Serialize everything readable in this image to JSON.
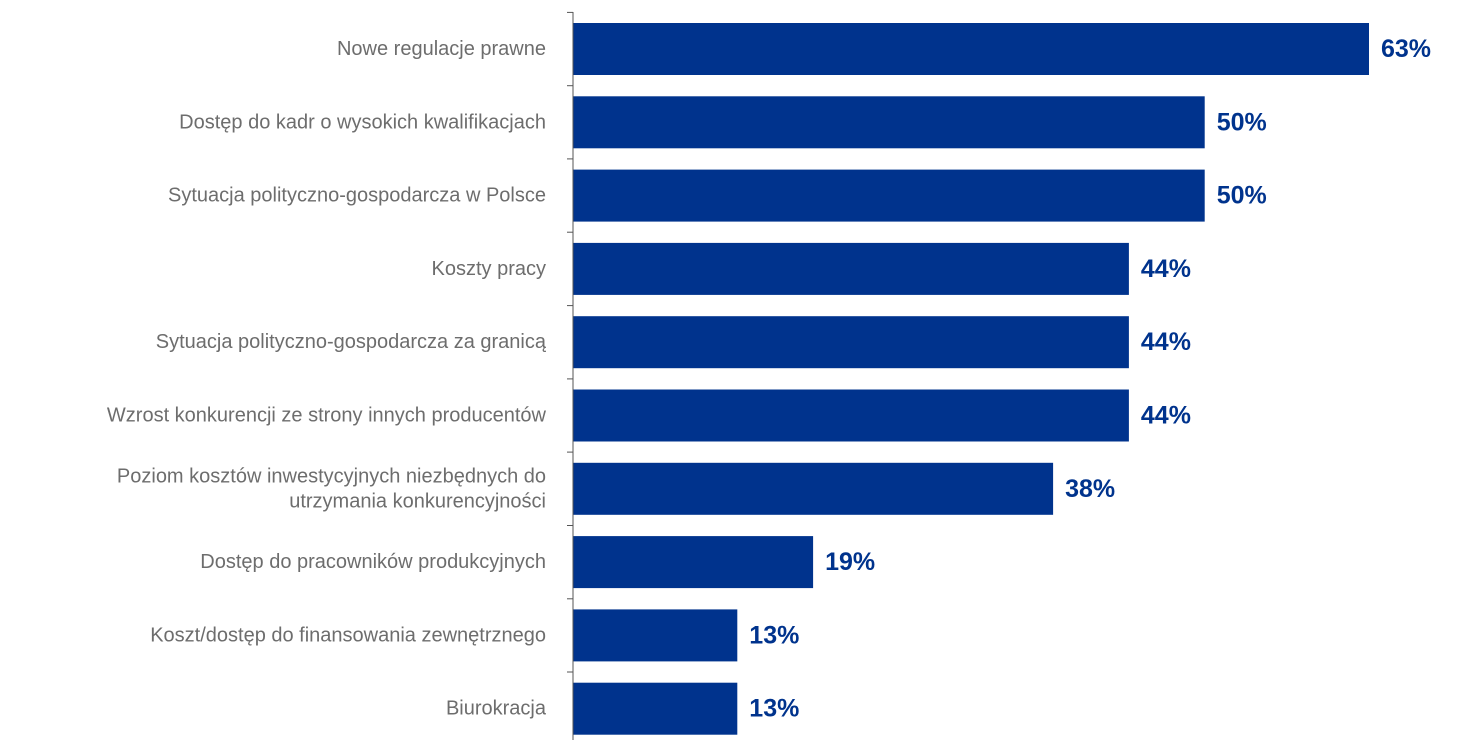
{
  "chart_data": {
    "type": "bar",
    "orientation": "horizontal",
    "categories": [
      [
        "Nowe regulacje prawne"
      ],
      [
        "Dostęp do kadr o wysokich kwalifikacjach"
      ],
      [
        "Sytuacja polityczno-gospodarcza w Polsce"
      ],
      [
        "Koszty pracy"
      ],
      [
        "Sytuacja polityczno-gospodarcza za granicą"
      ],
      [
        "Wzrost konkurencji ze strony innych producentów"
      ],
      [
        "Poziom kosztów inwestycyjnych niezbędnych do",
        "utrzymania konkurencyjności"
      ],
      [
        "Dostęp do pracowników produkcyjnych"
      ],
      [
        "Koszt/dostęp do finansowania zewnętrznego"
      ],
      [
        "Biurokracja"
      ]
    ],
    "values": [
      63,
      50,
      50,
      44,
      44,
      44,
      38,
      19,
      13,
      13
    ],
    "value_labels": [
      "63%",
      "50%",
      "50%",
      "44%",
      "44%",
      "44%",
      "38%",
      "19%",
      "13%",
      "13%"
    ],
    "xlim": [
      0,
      65
    ],
    "grid": false,
    "legend": "none",
    "colors": {
      "bar": "#00338d",
      "value_label": "#00338d",
      "category_label": "#6d6d6d",
      "axis": "#555555"
    }
  }
}
